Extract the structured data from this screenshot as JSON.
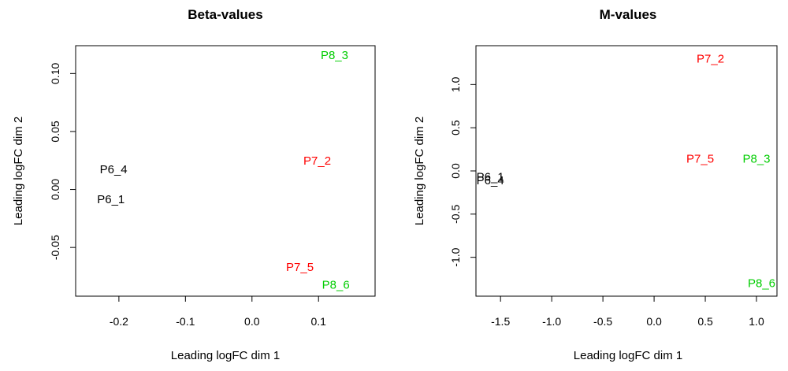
{
  "colors": {
    "P6": "#000000",
    "P7": "#ff0000",
    "P8": "#00cd00"
  },
  "chart_data": [
    {
      "type": "scatter",
      "title": "Beta-values",
      "xlabel": "Leading logFC dim 1",
      "ylabel": "Leading logFC dim 2",
      "xlim": [
        -0.265,
        0.185
      ],
      "ylim": [
        -0.092,
        0.124
      ],
      "xticks": [
        -0.2,
        -0.1,
        0.0,
        0.1
      ],
      "xtick_labels": [
        "-0.2",
        "-0.1",
        "0.0",
        "0.1"
      ],
      "yticks": [
        -0.05,
        0.0,
        0.05,
        0.1
      ],
      "ytick_labels": [
        "-0.05",
        "0.00",
        "0.05",
        "0.10"
      ],
      "grid": false,
      "legend": "none",
      "points": [
        {
          "label": "P6_4",
          "x": -0.208,
          "y": 0.0175,
          "group": "P6"
        },
        {
          "label": "P6_1",
          "x": -0.212,
          "y": -0.0085,
          "group": "P6"
        },
        {
          "label": "P7_2",
          "x": 0.098,
          "y": 0.025,
          "group": "P7"
        },
        {
          "label": "P7_5",
          "x": 0.072,
          "y": -0.067,
          "group": "P7"
        },
        {
          "label": "P8_3",
          "x": 0.124,
          "y": 0.116,
          "group": "P8"
        },
        {
          "label": "P8_6",
          "x": 0.126,
          "y": -0.082,
          "group": "P8"
        }
      ]
    },
    {
      "type": "scatter",
      "title": "M-values",
      "xlabel": "Leading logFC dim 1",
      "ylabel": "Leading logFC dim 2",
      "xlim": [
        -1.74,
        1.2
      ],
      "ylim": [
        -1.45,
        1.45
      ],
      "xticks": [
        -1.5,
        -1.0,
        -0.5,
        0.0,
        0.5,
        1.0
      ],
      "xtick_labels": [
        "-1.5",
        "-1.0",
        "-0.5",
        "0.0",
        "0.5",
        "1.0"
      ],
      "yticks": [
        -1.0,
        -0.5,
        0.0,
        0.5,
        1.0
      ],
      "ytick_labels": [
        "-1.0",
        "-0.5",
        "0.0",
        "0.5",
        "1.0"
      ],
      "grid": false,
      "legend": "none",
      "points": [
        {
          "label": "P7_2",
          "x": 0.55,
          "y": 1.3,
          "group": "P7"
        },
        {
          "label": "P7_5",
          "x": 0.45,
          "y": 0.14,
          "group": "P7"
        },
        {
          "label": "P8_3",
          "x": 1.0,
          "y": 0.14,
          "group": "P8"
        },
        {
          "label": "P8_6",
          "x": 1.05,
          "y": -1.3,
          "group": "P8"
        },
        {
          "label": "P6_1",
          "x": -1.6,
          "y": -0.07,
          "group": "P6"
        },
        {
          "label": "P6_4",
          "x": -1.6,
          "y": -0.11,
          "group": "P6"
        }
      ]
    }
  ]
}
